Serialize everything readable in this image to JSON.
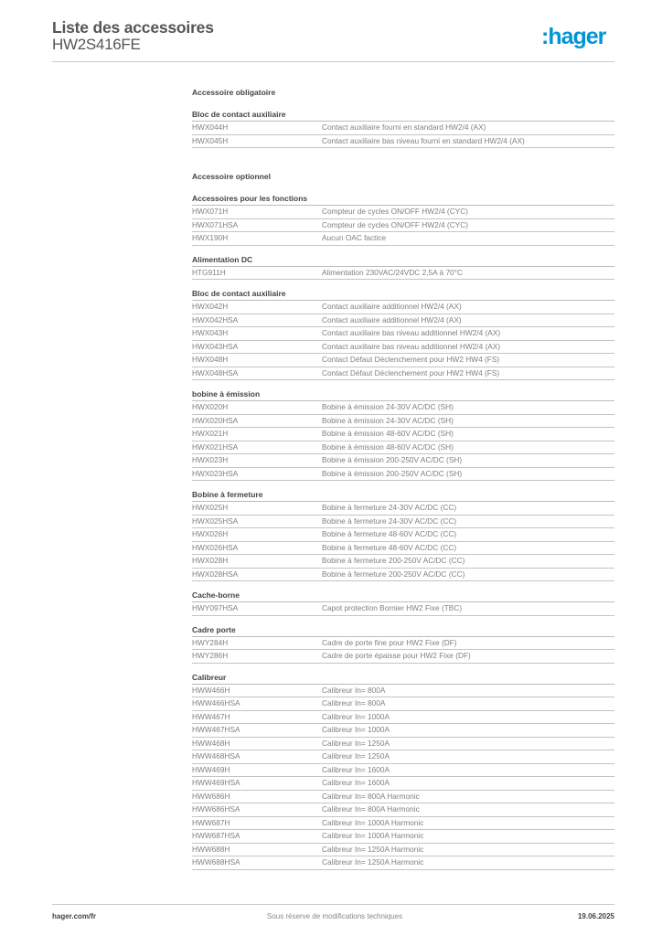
{
  "header": {
    "title": "Liste des accessoires",
    "subtitle": "HW2S416FE",
    "logo": ":hager",
    "brand_color": "#0096d6"
  },
  "sections": [
    {
      "title": "Accessoire obligatoire",
      "groups": [
        {
          "heading": "Bloc de contact auxiliaire",
          "rows": [
            {
              "ref": "HWX044H",
              "desc": "Contact auxiliaire fourni en standard HW2/4 (AX)"
            },
            {
              "ref": "HWX045H",
              "desc": "Contact auxiliaire bas niveau fourni en standard HW2/4 (AX)"
            }
          ]
        }
      ]
    },
    {
      "title": "Accessoire optionnel",
      "groups": [
        {
          "heading": "Accessoires pour les fonctions",
          "rows": [
            {
              "ref": "HWX071H",
              "desc": "Compteur de cycles ON/OFF HW2/4 (CYC)"
            },
            {
              "ref": "HWX071HSA",
              "desc": "Compteur de cycles ON/OFF HW2/4 (CYC)"
            },
            {
              "ref": "HWX190H",
              "desc": "Aucun OAC factice"
            }
          ]
        },
        {
          "heading": "Alimentation DC",
          "rows": [
            {
              "ref": "HTG911H",
              "desc": "Alimentation 230VAC/24VDC 2,5A à 70°C"
            }
          ]
        },
        {
          "heading": "Bloc de contact auxiliaire",
          "rows": [
            {
              "ref": "HWX042H",
              "desc": "Contact auxiliaire additionnel HW2/4 (AX)"
            },
            {
              "ref": "HWX042HSA",
              "desc": "Contact auxiliaire additionnel HW2/4 (AX)"
            },
            {
              "ref": "HWX043H",
              "desc": "Contact auxiliaire bas niveau additionnel HW2/4 (AX)"
            },
            {
              "ref": "HWX043HSA",
              "desc": "Contact auxiliaire bas niveau additionnel HW2/4 (AX)"
            },
            {
              "ref": "HWX048H",
              "desc": "Contact Défaut Déclenchement pour HW2 HW4 (FS)"
            },
            {
              "ref": "HWX048HSA",
              "desc": "Contact Défaut Déclenchement pour HW2 HW4 (FS)"
            }
          ]
        },
        {
          "heading": "bobine à émission",
          "rows": [
            {
              "ref": "HWX020H",
              "desc": "Bobine à émission 24-30V AC/DC (SH)"
            },
            {
              "ref": "HWX020HSA",
              "desc": "Bobine à émission 24-30V AC/DC (SH)"
            },
            {
              "ref": "HWX021H",
              "desc": "Bobine à émission 48-60V AC/DC (SH)"
            },
            {
              "ref": "HWX021HSA",
              "desc": "Bobine à émission 48-60V AC/DC (SH)"
            },
            {
              "ref": "HWX023H",
              "desc": "Bobine à émission 200-250V AC/DC (SH)"
            },
            {
              "ref": "HWX023HSA",
              "desc": "Bobine à émission 200-250V AC/DC (SH)"
            }
          ]
        },
        {
          "heading": "Bobine à fermeture",
          "rows": [
            {
              "ref": "HWX025H",
              "desc": "Bobine à fermeture 24-30V AC/DC (CC)"
            },
            {
              "ref": "HWX025HSA",
              "desc": "Bobine à fermeture 24-30V AC/DC (CC)"
            },
            {
              "ref": "HWX026H",
              "desc": "Bobine à fermeture 48-60V AC/DC (CC)"
            },
            {
              "ref": "HWX026HSA",
              "desc": "Bobine à fermeture 48-60V AC/DC (CC)"
            },
            {
              "ref": "HWX028H",
              "desc": "Bobine à fermeture 200-250V AC/DC (CC)"
            },
            {
              "ref": "HWX028HSA",
              "desc": "Bobine à fermeture 200-250V AC/DC (CC)"
            }
          ]
        },
        {
          "heading": "Cache-borne",
          "rows": [
            {
              "ref": "HWY097HSA",
              "desc": "Capot protection Bornier HW2 Fixe (TBC)"
            }
          ]
        },
        {
          "heading": "Cadre porte",
          "rows": [
            {
              "ref": "HWY284H",
              "desc": "Cadre de porte fine pour HW2 Fixe (DF)"
            },
            {
              "ref": "HWY286H",
              "desc": "Cadre de porte épaisse pour HW2 Fixe (DF)"
            }
          ]
        },
        {
          "heading": "Calibreur",
          "rows": [
            {
              "ref": "HWW466H",
              "desc": "Calibreur In= 800A"
            },
            {
              "ref": "HWW466HSA",
              "desc": "Calibreur In= 800A"
            },
            {
              "ref": "HWW467H",
              "desc": "Calibreur In= 1000A"
            },
            {
              "ref": "HWW467HSA",
              "desc": "Calibreur In= 1000A"
            },
            {
              "ref": "HWW468H",
              "desc": "Calibreur In= 1250A"
            },
            {
              "ref": "HWW468HSA",
              "desc": "Calibreur In= 1250A"
            },
            {
              "ref": "HWW469H",
              "desc": "Calibreur In= 1600A"
            },
            {
              "ref": "HWW469HSA",
              "desc": "Calibreur In= 1600A"
            },
            {
              "ref": "HWW686H",
              "desc": "Calibreur In=  800A Harmonic"
            },
            {
              "ref": "HWW686HSA",
              "desc": "Calibreur In= 800A Harmonic"
            },
            {
              "ref": "HWW687H",
              "desc": "Calibreur In=  1000A Harmonic"
            },
            {
              "ref": "HWW687HSA",
              "desc": "Calibreur In= 1000A Harmonic"
            },
            {
              "ref": "HWW688H",
              "desc": "Calibreur In=  1250A Harmonic"
            },
            {
              "ref": "HWW688HSA",
              "desc": "Calibreur In= 1250A Harmonic"
            }
          ]
        }
      ]
    }
  ],
  "footer": {
    "website": "hager.com/fr",
    "notice": "Sous réserve de modifications techniques",
    "date": "19.06.2025"
  }
}
